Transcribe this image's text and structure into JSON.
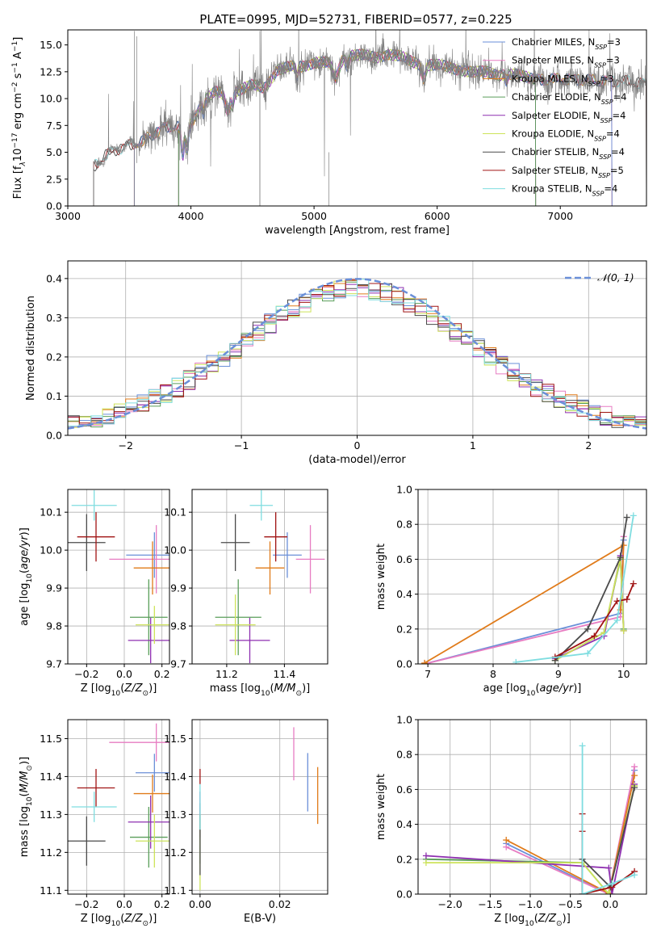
{
  "figure": {
    "title": "PLATE=0995, MJD=52731, FIBERID=0577, z=0.225"
  },
  "colors": {
    "chabrier_miles": "#6a8fd8",
    "salpeter_miles": "#e77cc2",
    "kroupa_miles": "#e07b1a",
    "chabrier_elodie": "#5a9e5a",
    "salpeter_elodie": "#8e2fb0",
    "kroupa_elodie": "#cde35a",
    "chabrier_stelib": "#4a4a4a",
    "salpeter_stelib": "#a01414",
    "kroupa_stelib": "#7fdde0",
    "gaussian": "#6a8fd8",
    "spectrum_data": "#808080",
    "grid": "#b0b0b0"
  },
  "legend_spectrum": [
    {
      "key": "chabrier_miles",
      "label": "Chabrier MILES, N",
      "sub": "SSP",
      "suffix": "=3"
    },
    {
      "key": "salpeter_miles",
      "label": "Salpeter MILES, N",
      "sub": "SSP",
      "suffix": "=3"
    },
    {
      "key": "kroupa_miles",
      "label": "Kroupa MILES, N",
      "sub": "SSP",
      "suffix": "=3"
    },
    {
      "key": "chabrier_elodie",
      "label": "Chabrier ELODIE, N",
      "sub": "SSP",
      "suffix": "=4"
    },
    {
      "key": "salpeter_elodie",
      "label": "Salpeter ELODIE, N",
      "sub": "SSP",
      "suffix": "=4"
    },
    {
      "key": "kroupa_elodie",
      "label": "Kroupa ELODIE, N",
      "sub": "SSP",
      "suffix": "=4"
    },
    {
      "key": "chabrier_stelib",
      "label": "Chabrier STELIB, N",
      "sub": "SSP",
      "suffix": "=4"
    },
    {
      "key": "salpeter_stelib",
      "label": "Salpeter STELIB, N",
      "sub": "SSP",
      "suffix": "=5"
    },
    {
      "key": "kroupa_stelib",
      "label": "Kroupa STELIB, N",
      "sub": "SSP",
      "suffix": "=4"
    }
  ],
  "legend_residual": "𝒩(0, 1)",
  "chart_data": [
    {
      "id": "spectrum",
      "type": "line",
      "xlabel": "wavelength [Angstrom, rest frame]",
      "ylabel_parts": [
        "Flux [f",
        "λ",
        "10",
        "−17",
        " erg cm",
        "−2",
        " s",
        "−1",
        " A",
        "−1",
        "]"
      ],
      "xlim": [
        3000,
        7700
      ],
      "ylim": [
        0,
        16.4
      ],
      "xticks": [
        3000,
        4000,
        5000,
        6000,
        7000
      ],
      "yticks": [
        0.0,
        2.5,
        5.0,
        7.5,
        10.0,
        12.5,
        15.0
      ],
      "ytick_labels": [
        "0.0",
        "2.5",
        "5.0",
        "7.5",
        "10.0",
        "12.5",
        "15.0"
      ],
      "grid": false,
      "legend_position": "upper right",
      "data_start": 3210,
      "continuum_x": [
        3210,
        3300,
        3400,
        3500,
        3600,
        3700,
        3800,
        3900,
        4000,
        4100,
        4200,
        4300,
        4400,
        4500,
        4600,
        4700,
        4800,
        4900,
        5000,
        5100,
        5200,
        5300,
        5400,
        5500,
        5600,
        5700,
        5800,
        5900,
        6000,
        6100,
        6200,
        6300,
        6400,
        6500,
        6600,
        6700,
        6800,
        6900,
        7000,
        7100,
        7200,
        7300,
        7400,
        7500,
        7600,
        7700
      ],
      "continuum_y": [
        3.6,
        4.6,
        5.3,
        5.7,
        5.9,
        6.8,
        7.4,
        7.3,
        7.7,
        9.8,
        10.6,
        10.4,
        10.9,
        11.2,
        11.0,
        12.7,
        12.9,
        13.0,
        13.4,
        13.3,
        13.6,
        14.1,
        14.0,
        13.8,
        14.2,
        13.9,
        13.4,
        13.2,
        13.1,
        12.9,
        12.7,
        12.4,
        12.5,
        12.3,
        12.2,
        12.1,
        11.9,
        11.7,
        11.8,
        11.9,
        11.7,
        11.6,
        11.7,
        11.6,
        11.5,
        11.4
      ],
      "model_cutoffs": {
        "chabrier_miles": [
          3540,
          7420
        ],
        "salpeter_miles": [
          3540,
          7420
        ],
        "kroupa_miles": [
          3540,
          7420
        ],
        "chabrier_elodie": [
          3900,
          6800
        ],
        "salpeter_elodie": [
          3900,
          6800
        ],
        "kroupa_elodie": [
          3900,
          6800
        ],
        "chabrier_stelib": [
          3210,
          7700
        ],
        "salpeter_stelib": [
          3210,
          7700
        ],
        "kroupa_stelib": [
          3210,
          7700
        ]
      }
    },
    {
      "id": "residuals",
      "type": "step",
      "xlabel": "(data-model)/error",
      "ylabel": "Normed distribution",
      "xlim": [
        -2.5,
        2.5
      ],
      "ylim": [
        0,
        0.445
      ],
      "xticks": [
        -2,
        -1,
        0,
        1,
        2
      ],
      "xtick_labels": [
        "−2",
        "−1",
        "0",
        "1",
        "2"
      ],
      "yticks": [
        0.0,
        0.1,
        0.2,
        0.3,
        0.4
      ],
      "ytick_labels": [
        "0.0",
        "0.1",
        "0.2",
        "0.3",
        "0.4"
      ],
      "grid": true,
      "legend_position": "upper right",
      "bin_width": 0.1,
      "gaussian": {
        "mean": 0,
        "sigma": 1
      }
    },
    {
      "id": "age_vs_Z",
      "type": "scatter",
      "xlabel_parts": [
        "Z [log",
        "10",
        "(Z/Z",
        "⊙",
        ")]"
      ],
      "ylabel_parts": [
        "age  [log",
        "10",
        "(age/yr)]"
      ],
      "xlim": [
        -0.3,
        0.24
      ],
      "ylim": [
        9.7,
        10.16
      ],
      "xticks": [
        -0.2,
        0.0,
        0.2
      ],
      "xtick_labels": [
        "−0.2",
        "0.0",
        "0.2"
      ],
      "yticks": [
        9.7,
        9.8,
        9.9,
        10.0,
        10.1
      ],
      "ytick_labels": [
        "9.7",
        "9.8",
        "9.9",
        "10.0",
        "10.1"
      ],
      "grid": true,
      "points": [
        {
          "key": "chabrier_miles",
          "x": 0.16,
          "y": 9.987,
          "xerr": 0.15,
          "yerr": 0.06
        },
        {
          "key": "salpeter_miles",
          "x": 0.17,
          "y": 9.976,
          "xerr": 0.25,
          "yerr": 0.09
        },
        {
          "key": "kroupa_miles",
          "x": 0.15,
          "y": 9.953,
          "xerr": 0.1,
          "yerr": 0.07
        },
        {
          "key": "chabrier_elodie",
          "x": 0.13,
          "y": 9.823,
          "xerr": 0.1,
          "yerr": 0.1
        },
        {
          "key": "salpeter_elodie",
          "x": 0.14,
          "y": 9.762,
          "xerr": 0.12,
          "yerr": 0.06
        },
        {
          "key": "kroupa_elodie",
          "x": 0.16,
          "y": 9.803,
          "xerr": 0.1,
          "yerr": 0.05
        },
        {
          "key": "chabrier_stelib",
          "x": -0.2,
          "y": 10.02,
          "xerr": 0.1,
          "yerr": 0.075
        },
        {
          "key": "salpeter_stelib",
          "x": -0.15,
          "y": 10.035,
          "xerr": 0.1,
          "yerr": 0.065
        },
        {
          "key": "kroupa_stelib",
          "x": -0.16,
          "y": 10.118,
          "xerr": 0.12,
          "yerr": 0.04
        }
      ]
    },
    {
      "id": "age_vs_mass",
      "type": "scatter",
      "xlabel_parts": [
        "mass [log",
        "10",
        "(M/M",
        "⊙",
        ")]"
      ],
      "xlim": [
        11.08,
        11.55
      ],
      "ylim": [
        9.7,
        10.16
      ],
      "xticks": [
        11.2,
        11.4
      ],
      "xtick_labels": [
        "11.2",
        "11.4"
      ],
      "yticks": [
        9.7,
        9.8,
        9.9,
        10.0,
        10.1
      ],
      "ytick_labels": [
        "9.7",
        "9.8",
        "9.9",
        "10.0",
        "10.1"
      ],
      "grid": true,
      "points": [
        {
          "key": "chabrier_miles",
          "x": 11.41,
          "y": 9.987,
          "xerr": 0.05,
          "yerr": 0.06
        },
        {
          "key": "salpeter_miles",
          "x": 11.49,
          "y": 9.976,
          "xerr": 0.05,
          "yerr": 0.09
        },
        {
          "key": "kroupa_miles",
          "x": 11.35,
          "y": 9.953,
          "xerr": 0.05,
          "yerr": 0.07
        },
        {
          "key": "chabrier_elodie",
          "x": 11.24,
          "y": 9.823,
          "xerr": 0.08,
          "yerr": 0.1
        },
        {
          "key": "salpeter_elodie",
          "x": 11.28,
          "y": 9.762,
          "xerr": 0.07,
          "yerr": 0.06
        },
        {
          "key": "kroupa_elodie",
          "x": 11.23,
          "y": 9.803,
          "xerr": 0.07,
          "yerr": 0.08
        },
        {
          "key": "chabrier_stelib",
          "x": 11.23,
          "y": 10.02,
          "xerr": 0.05,
          "yerr": 0.075
        },
        {
          "key": "salpeter_stelib",
          "x": 11.37,
          "y": 10.035,
          "xerr": 0.04,
          "yerr": 0.065
        },
        {
          "key": "kroupa_stelib",
          "x": 11.32,
          "y": 10.118,
          "xerr": 0.04,
          "yerr": 0.04
        }
      ]
    },
    {
      "id": "weight_vs_age",
      "type": "line",
      "xlabel_parts": [
        "age  [log",
        "10",
        "(age/yr)]"
      ],
      "ylabel": "mass weight",
      "xlim": [
        6.85,
        10.35
      ],
      "ylim": [
        0,
        1.0
      ],
      "xticks": [
        7,
        8,
        9,
        10
      ],
      "xtick_labels": [
        "7",
        "8",
        "9",
        "10"
      ],
      "yticks": [
        0.0,
        0.2,
        0.4,
        0.6,
        0.8,
        1.0
      ],
      "ytick_labels": [
        "0.0",
        "0.2",
        "0.4",
        "0.6",
        "0.8",
        "1.0"
      ],
      "grid": true,
      "series": [
        {
          "key": "chabrier_miles",
          "x": [
            6.95,
            9.95,
            10.0
          ],
          "y": [
            0.0,
            0.29,
            0.71
          ]
        },
        {
          "key": "salpeter_miles",
          "x": [
            6.95,
            9.95,
            10.0
          ],
          "y": [
            0.0,
            0.27,
            0.73
          ]
        },
        {
          "key": "kroupa_miles",
          "x": [
            6.95,
            10.0,
            9.95
          ],
          "y": [
            0.005,
            0.68,
            0.31
          ]
        },
        {
          "key": "chabrier_elodie",
          "x": [
            8.95,
            9.7,
            9.95,
            10.0
          ],
          "y": [
            0.02,
            0.18,
            0.6,
            0.2
          ]
        },
        {
          "key": "salpeter_elodie",
          "x": [
            8.95,
            9.7,
            9.95,
            10.0
          ],
          "y": [
            0.03,
            0.16,
            0.62,
            0.19
          ]
        },
        {
          "key": "kroupa_elodie",
          "x": [
            8.95,
            9.7,
            9.95,
            10.0
          ],
          "y": [
            0.02,
            0.18,
            0.61,
            0.19
          ]
        },
        {
          "key": "chabrier_stelib",
          "x": [
            8.95,
            9.45,
            9.95,
            10.05
          ],
          "y": [
            0.02,
            0.2,
            0.61,
            0.84
          ]
        },
        {
          "key": "salpeter_stelib",
          "x": [
            8.95,
            9.55,
            9.9,
            10.05,
            10.15
          ],
          "y": [
            0.04,
            0.16,
            0.36,
            0.37,
            0.46
          ]
        },
        {
          "key": "kroupa_stelib",
          "x": [
            8.35,
            9.45,
            9.9,
            10.15
          ],
          "y": [
            0.01,
            0.06,
            0.25,
            0.85
          ]
        }
      ]
    },
    {
      "id": "mass_vs_Z",
      "type": "scatter",
      "xlabel_parts": [
        "Z [log",
        "10",
        "(Z/Z",
        "⊙",
        ")]"
      ],
      "ylabel_parts": [
        "mass [log",
        "10",
        "(M/M",
        "⊙",
        ")]"
      ],
      "xlim": [
        -0.3,
        0.24
      ],
      "ylim": [
        11.09,
        11.55
      ],
      "xticks": [
        -0.2,
        0.0,
        0.2
      ],
      "xtick_labels": [
        "−0.2",
        "0.0",
        "0.2"
      ],
      "yticks": [
        11.1,
        11.2,
        11.3,
        11.4,
        11.5
      ],
      "ytick_labels": [
        "11.1",
        "11.2",
        "11.3",
        "11.4",
        "11.5"
      ],
      "grid": true,
      "points": [
        {
          "key": "chabrier_miles",
          "x": 0.16,
          "y": 11.41,
          "xerr": 0.1,
          "yerr": 0.05
        },
        {
          "key": "salpeter_miles",
          "x": 0.17,
          "y": 11.49,
          "xerr": 0.25,
          "yerr": 0.05
        },
        {
          "key": "kroupa_miles",
          "x": 0.15,
          "y": 11.355,
          "xerr": 0.1,
          "yerr": 0.05
        },
        {
          "key": "chabrier_elodie",
          "x": 0.13,
          "y": 11.24,
          "xerr": 0.1,
          "yerr": 0.08
        },
        {
          "key": "salpeter_elodie",
          "x": 0.14,
          "y": 11.28,
          "xerr": 0.12,
          "yerr": 0.07
        },
        {
          "key": "kroupa_elodie",
          "x": 0.16,
          "y": 11.23,
          "xerr": 0.1,
          "yerr": 0.07
        },
        {
          "key": "chabrier_stelib",
          "x": -0.2,
          "y": 11.23,
          "xerr": 0.1,
          "yerr": 0.065
        },
        {
          "key": "salpeter_stelib",
          "x": -0.15,
          "y": 11.37,
          "xerr": 0.1,
          "yerr": 0.05
        },
        {
          "key": "kroupa_stelib",
          "x": -0.16,
          "y": 11.32,
          "xerr": 0.12,
          "yerr": 0.04
        }
      ]
    },
    {
      "id": "mass_vs_ebv",
      "type": "scatter",
      "xlabel": "E(B-V)",
      "xlim": [
        -0.002,
        0.032
      ],
      "ylim": [
        11.09,
        11.55
      ],
      "xticks": [
        0.0,
        0.02
      ],
      "xtick_labels": [
        "0.00",
        "0.02"
      ],
      "yticks": [
        11.1,
        11.2,
        11.3,
        11.4,
        11.5
      ],
      "ytick_labels": [
        "11.1",
        "11.2",
        "11.3",
        "11.4",
        "11.5"
      ],
      "grid": true,
      "points": [
        {
          "key": "chabrier_miles",
          "x": 0.027,
          "y": 11.385,
          "xerr": 0,
          "yerr": 0.077
        },
        {
          "key": "salpeter_miles",
          "x": 0.0235,
          "y": 11.46,
          "xerr": 0,
          "yerr": 0.07
        },
        {
          "key": "kroupa_miles",
          "x": 0.0295,
          "y": 11.35,
          "xerr": 0,
          "yerr": 0.075
        },
        {
          "key": "chabrier_elodie",
          "x": 0.0,
          "y": 11.25,
          "xerr": 0,
          "yerr": 0.08
        },
        {
          "key": "salpeter_elodie",
          "x": 0.0,
          "y": 11.3,
          "xerr": 0,
          "yerr": 0.06
        },
        {
          "key": "kroupa_elodie",
          "x": 0.0,
          "y": 11.2,
          "xerr": 0,
          "yerr": 0.1
        },
        {
          "key": "chabrier_stelib",
          "x": 0.0,
          "y": 11.22,
          "xerr": 0,
          "yerr": 0.08
        },
        {
          "key": "salpeter_stelib",
          "x": 0.0,
          "y": 11.4,
          "xerr": 0,
          "yerr": 0.02
        },
        {
          "key": "kroupa_stelib",
          "x": 0.0,
          "y": 11.32,
          "xerr": 0,
          "yerr": 0.06
        }
      ]
    },
    {
      "id": "weight_vs_Z",
      "type": "line",
      "xlabel_parts": [
        "Z [log",
        "10",
        "(Z/Z",
        "⊙",
        ")]"
      ],
      "ylabel": "mass weight",
      "xlim": [
        -2.4,
        0.45
      ],
      "ylim": [
        0,
        1.0
      ],
      "xticks": [
        -2.0,
        -1.5,
        -1.0,
        -0.5,
        0.0
      ],
      "xtick_labels": [
        "−2.0",
        "−1.5",
        "−1.0",
        "−0.5",
        "0.0"
      ],
      "yticks": [
        0.0,
        0.2,
        0.4,
        0.6,
        0.8,
        1.0
      ],
      "ytick_labels": [
        "0.0",
        "0.2",
        "0.4",
        "0.6",
        "0.8",
        "1.0"
      ],
      "grid": true,
      "series": [
        {
          "key": "chabrier_miles",
          "x": [
            -1.3,
            -0.02,
            0.3
          ],
          "y": [
            0.29,
            0.0,
            0.71
          ]
        },
        {
          "key": "salpeter_miles",
          "x": [
            -1.3,
            -0.02,
            0.3
          ],
          "y": [
            0.27,
            0.0,
            0.73
          ]
        },
        {
          "key": "kroupa_miles",
          "x": [
            -1.3,
            -0.02,
            0.3
          ],
          "y": [
            0.31,
            0.005,
            0.68
          ]
        },
        {
          "key": "chabrier_elodie",
          "x": [
            -2.3,
            -0.35,
            -0.02,
            0.3
          ],
          "y": [
            0.2,
            0.18,
            0.0,
            0.62
          ]
        },
        {
          "key": "salpeter_elodie",
          "x": [
            -2.3,
            -0.02,
            0.02,
            0.3
          ],
          "y": [
            0.22,
            0.15,
            0.0,
            0.63
          ]
        },
        {
          "key": "kroupa_elodie",
          "x": [
            -2.3,
            -0.35,
            -0.02,
            0.3
          ],
          "y": [
            0.18,
            0.18,
            0.0,
            0.62
          ]
        },
        {
          "key": "chabrier_stelib",
          "x": [
            -0.35,
            -0.35,
            0.0,
            0.3
          ],
          "y": [
            0.0,
            0.2,
            0.04,
            0.61
          ]
        },
        {
          "key": "salpeter_stelib",
          "x": [
            -0.35,
            -0.35,
            -0.35,
            0.02,
            0.3
          ],
          "y": [
            0.36,
            0.46,
            0.0,
            0.04,
            0.13
          ]
        },
        {
          "key": "kroupa_stelib",
          "x": [
            -0.35,
            -0.35,
            0.02,
            0.3
          ],
          "y": [
            0.85,
            0.0,
            0.06,
            0.11
          ]
        }
      ]
    }
  ]
}
